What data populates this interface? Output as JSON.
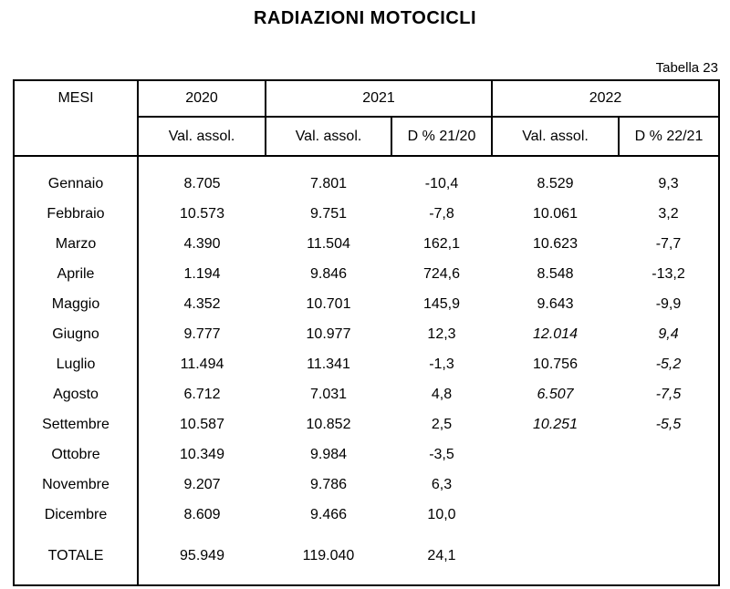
{
  "page": {
    "title": "RADIAZIONI MOTOCICLI",
    "table_label": "Tabella 23"
  },
  "table": {
    "mesi_header": "MESI",
    "year_headers": [
      "2020",
      "2021",
      "2022"
    ],
    "sub_headers": [
      "Val. assol.",
      "Val. assol.",
      "D % 21/20",
      "Val. assol.",
      "D % 22/21"
    ],
    "rows": [
      {
        "mese": "Gennaio",
        "v2020": "8.705",
        "v2021": "7.801",
        "d2120": "-10,4",
        "v2022": "8.529",
        "d2221": "9,3",
        "italic_v2022": false,
        "italic_d2221": false
      },
      {
        "mese": "Febbraio",
        "v2020": "10.573",
        "v2021": "9.751",
        "d2120": "-7,8",
        "v2022": "10.061",
        "d2221": "3,2",
        "italic_v2022": false,
        "italic_d2221": false
      },
      {
        "mese": "Marzo",
        "v2020": "4.390",
        "v2021": "11.504",
        "d2120": "162,1",
        "v2022": "10.623",
        "d2221": "-7,7",
        "italic_v2022": false,
        "italic_d2221": false
      },
      {
        "mese": "Aprile",
        "v2020": "1.194",
        "v2021": "9.846",
        "d2120": "724,6",
        "v2022": "8.548",
        "d2221": "-13,2",
        "italic_v2022": false,
        "italic_d2221": false
      },
      {
        "mese": "Maggio",
        "v2020": "4.352",
        "v2021": "10.701",
        "d2120": "145,9",
        "v2022": "9.643",
        "d2221": "-9,9",
        "italic_v2022": false,
        "italic_d2221": false
      },
      {
        "mese": "Giugno",
        "v2020": "9.777",
        "v2021": "10.977",
        "d2120": "12,3",
        "v2022": "12.014",
        "d2221": "9,4",
        "italic_v2022": true,
        "italic_d2221": true
      },
      {
        "mese": "Luglio",
        "v2020": "11.494",
        "v2021": "11.341",
        "d2120": "-1,3",
        "v2022": "10.756",
        "d2221": "-5,2",
        "italic_v2022": false,
        "italic_d2221": true
      },
      {
        "mese": "Agosto",
        "v2020": "6.712",
        "v2021": "7.031",
        "d2120": "4,8",
        "v2022": "6.507",
        "d2221": "-7,5",
        "italic_v2022": true,
        "italic_d2221": true
      },
      {
        "mese": "Settembre",
        "v2020": "10.587",
        "v2021": "10.852",
        "d2120": "2,5",
        "v2022": "10.251",
        "d2221": "-5,5",
        "italic_v2022": true,
        "italic_d2221": true
      },
      {
        "mese": "Ottobre",
        "v2020": "10.349",
        "v2021": "9.984",
        "d2120": "-3,5",
        "v2022": "",
        "d2221": "",
        "italic_v2022": false,
        "italic_d2221": false
      },
      {
        "mese": "Novembre",
        "v2020": "9.207",
        "v2021": "9.786",
        "d2120": "6,3",
        "v2022": "",
        "d2221": "",
        "italic_v2022": false,
        "italic_d2221": false
      },
      {
        "mese": "Dicembre",
        "v2020": "8.609",
        "v2021": "9.466",
        "d2120": "10,0",
        "v2022": "",
        "d2221": "",
        "italic_v2022": false,
        "italic_d2221": false
      },
      {
        "mese": "TOTALE",
        "v2020": "95.949",
        "v2021": "119.040",
        "d2120": "24,1",
        "v2022": "",
        "d2221": "",
        "italic_v2022": false,
        "italic_d2221": false,
        "total": true
      }
    ]
  }
}
